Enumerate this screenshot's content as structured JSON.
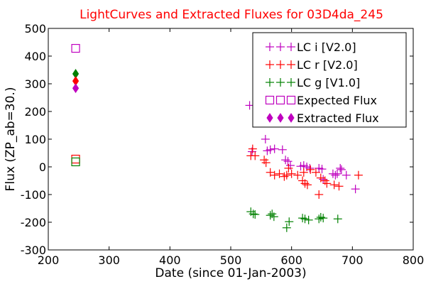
{
  "chart_data": {
    "type": "scatter",
    "title": "LightCurves and Extracted Fluxes for 03D4da_245",
    "xlabel": "Date (since 01-Jan-2003)",
    "ylabel": "Flux (ZP_ab=30.)",
    "xlim": [
      200,
      800
    ],
    "ylim": [
      -300,
      500
    ],
    "xticks": [
      200,
      300,
      400,
      500,
      600,
      700,
      800
    ],
    "yticks": [
      -300,
      -200,
      -100,
      0,
      100,
      200,
      300,
      400,
      500
    ],
    "grid": false,
    "legend_position": "top-right",
    "series": [
      {
        "name": "LC i [V2.0]",
        "marker": "plus",
        "color": "#bf00bf",
        "points": [
          [
            531,
            222
          ],
          [
            535,
            55
          ],
          [
            557,
            100
          ],
          [
            560,
            58
          ],
          [
            565,
            62
          ],
          [
            572,
            65
          ],
          [
            585,
            62
          ],
          [
            590,
            25
          ],
          [
            594,
            20
          ],
          [
            598,
            5
          ],
          [
            615,
            2
          ],
          [
            620,
            5
          ],
          [
            625,
            0
          ],
          [
            630,
            -5
          ],
          [
            645,
            -5
          ],
          [
            650,
            -8
          ],
          [
            652,
            -45
          ],
          [
            668,
            -25
          ],
          [
            672,
            -30
          ],
          [
            675,
            -25
          ],
          [
            680,
            -5
          ],
          [
            682,
            -10
          ],
          [
            690,
            -30
          ],
          [
            705,
            -80
          ]
        ]
      },
      {
        "name": "LC r [V2.0]",
        "marker": "plus",
        "color": "#ff0000",
        "points": [
          [
            533,
            40
          ],
          [
            536,
            65
          ],
          [
            540,
            40
          ],
          [
            555,
            25
          ],
          [
            558,
            15
          ],
          [
            565,
            -20
          ],
          [
            572,
            -30
          ],
          [
            580,
            -25
          ],
          [
            588,
            -35
          ],
          [
            592,
            -30
          ],
          [
            595,
            -5
          ],
          [
            600,
            -25
          ],
          [
            610,
            -30
          ],
          [
            618,
            -50
          ],
          [
            620,
            -20
          ],
          [
            622,
            -60
          ],
          [
            626,
            -65
          ],
          [
            631,
            -10
          ],
          [
            640,
            -20
          ],
          [
            645,
            -100
          ],
          [
            648,
            -40
          ],
          [
            655,
            -50
          ],
          [
            658,
            -60
          ],
          [
            670,
            -65
          ],
          [
            678,
            -70
          ],
          [
            710,
            -30
          ]
        ]
      },
      {
        "name": "LC g [V1.0]",
        "marker": "plus",
        "color": "#008000",
        "points": [
          [
            533,
            -162
          ],
          [
            537,
            -170
          ],
          [
            540,
            -172
          ],
          [
            565,
            -175
          ],
          [
            568,
            -170
          ],
          [
            571,
            -180
          ],
          [
            592,
            -220
          ],
          [
            596,
            -198
          ],
          [
            618,
            -185
          ],
          [
            622,
            -188
          ],
          [
            628,
            -192
          ],
          [
            645,
            -188
          ],
          [
            648,
            -182
          ],
          [
            652,
            -185
          ],
          [
            676,
            -188
          ]
        ]
      },
      {
        "name": "Expected Flux",
        "marker": "square",
        "color": "#bf00bf",
        "points": [
          [
            245,
            428
          ]
        ]
      },
      {
        "name": "",
        "marker": "square",
        "color": "#ff0000",
        "points": [
          [
            245,
            28
          ]
        ]
      },
      {
        "name": "",
        "marker": "square",
        "color": "#008000",
        "points": [
          [
            245,
            18
          ]
        ]
      },
      {
        "name": "",
        "marker": "diamond",
        "color": "#008000",
        "points": [
          [
            245,
            336
          ]
        ]
      },
      {
        "name": "",
        "marker": "diamond",
        "color": "#ff0000",
        "points": [
          [
            245,
            310
          ]
        ]
      },
      {
        "name": "Extracted Flux",
        "marker": "diamond",
        "color": "#bf00bf",
        "points": [
          [
            245,
            284
          ]
        ]
      }
    ]
  }
}
